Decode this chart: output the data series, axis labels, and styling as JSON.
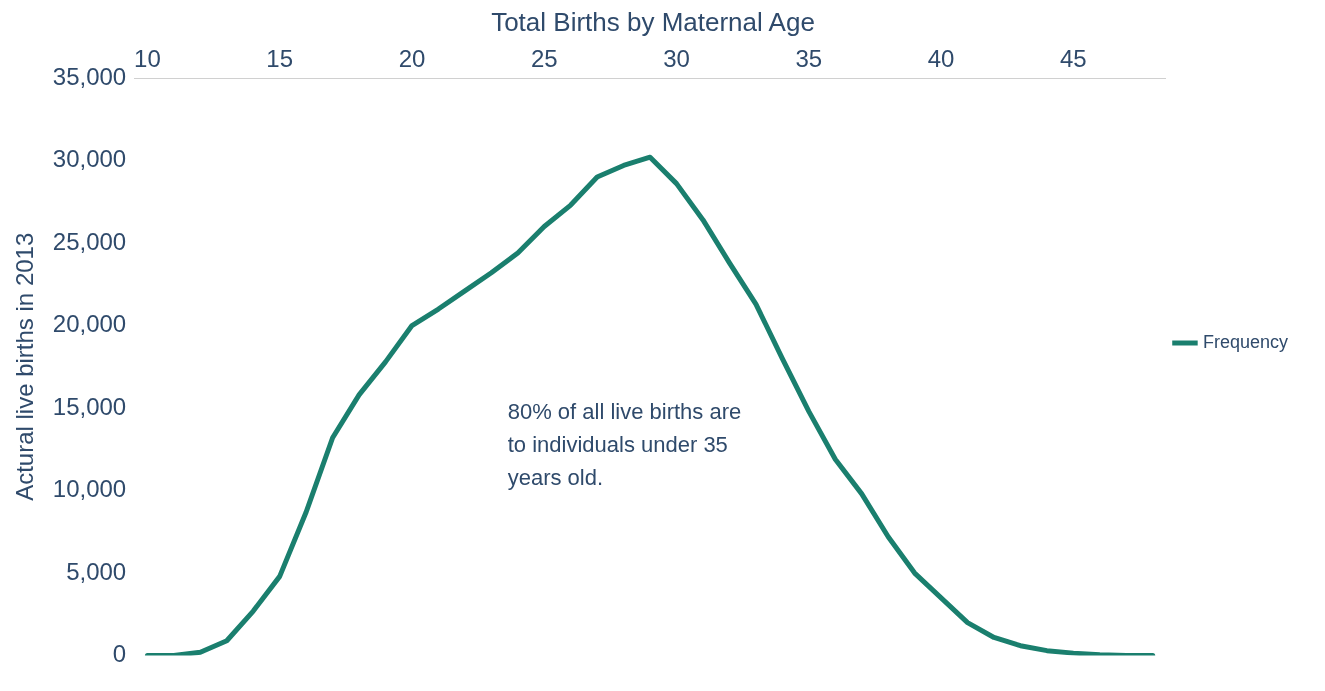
{
  "chart_data": {
    "type": "line",
    "title": "Total Births by Maternal Age",
    "ylabel": "Actural live births in 2013",
    "x": [
      10,
      11,
      12,
      13,
      14,
      15,
      16,
      17,
      18,
      19,
      20,
      21,
      22,
      23,
      24,
      25,
      26,
      27,
      28,
      29,
      30,
      31,
      32,
      33,
      34,
      35,
      36,
      37,
      38,
      39,
      40,
      41,
      42,
      43,
      44,
      45,
      46,
      47,
      48
    ],
    "series": [
      {
        "name": "Frequency",
        "color": "#1a7f6e",
        "values": [
          0,
          0,
          200,
          900,
          2700,
          4800,
          8700,
          13200,
          15800,
          17800,
          20000,
          21000,
          22100,
          23200,
          24400,
          26000,
          27300,
          29000,
          29700,
          30200,
          28600,
          26400,
          23800,
          21300,
          18000,
          14800,
          11900,
          9800,
          7200,
          5000,
          3500,
          2000,
          1100,
          600,
          300,
          150,
          50,
          0,
          0
        ]
      }
    ],
    "xlim": [
      9.5,
      48.5
    ],
    "xticks": [
      10,
      15,
      20,
      25,
      30,
      35,
      40,
      45
    ],
    "ylim": [
      0,
      35000
    ],
    "yticks": [
      {
        "value": 0,
        "label": "0"
      },
      {
        "value": 5000,
        "label": "5,000"
      },
      {
        "value": 10000,
        "label": "10,000"
      },
      {
        "value": 15000,
        "label": "15,000"
      },
      {
        "value": 20000,
        "label": "20,000"
      },
      {
        "value": 25000,
        "label": "25,000"
      },
      {
        "value": 30000,
        "label": "30,000"
      },
      {
        "value": 35000,
        "label": "35,000"
      }
    ],
    "annotations": [
      "80% of all live births are to individuals under 35 years old."
    ],
    "grid": false,
    "legend": "right",
    "marker": "none",
    "line_style": "solid"
  }
}
